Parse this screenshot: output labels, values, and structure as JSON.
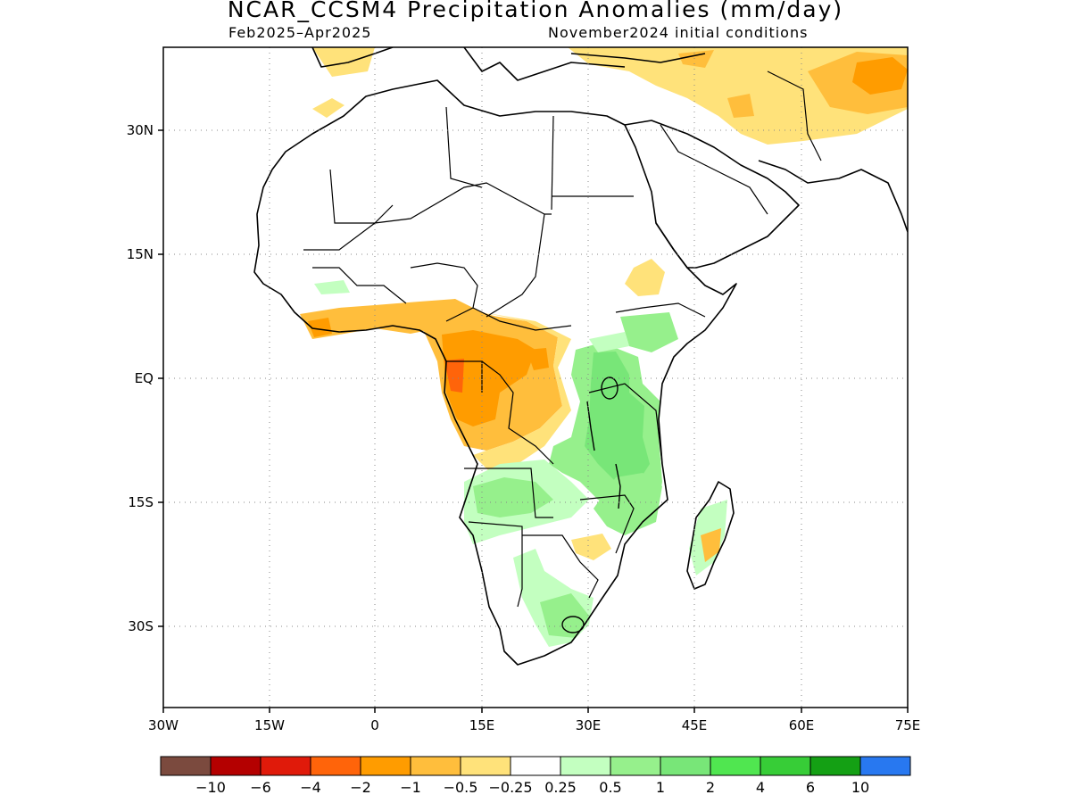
{
  "title": "NCAR_CCSM4 Precipitation Anomalies (mm/day)",
  "subtitle_left": "Feb2025–Apr2025",
  "subtitle_right": "November2024 initial conditions",
  "map": {
    "lon_range": [
      -30,
      75
    ],
    "lat_range": [
      -42,
      40
    ],
    "lon_ticks": [
      "30W",
      "15W",
      "0",
      "15E",
      "30E",
      "45E",
      "60E",
      "75E"
    ],
    "lat_ticks": [
      "30N",
      "15N",
      "EQ",
      "15S",
      "30S"
    ],
    "grid": "dotted",
    "regions": [
      {
        "name": "Gulf of Guinea coast",
        "category": "-1 to -0.5"
      },
      {
        "name": "Congo Basin / Gabon",
        "category": "-2 to -1"
      },
      {
        "name": "Central Africa",
        "category": "-1 to -0.5"
      },
      {
        "name": "East Africa / Lake Victoria",
        "category": "0.5 to 2"
      },
      {
        "name": "Southern Tanzania / Mozambique",
        "category": "0.5 to 2"
      },
      {
        "name": "Angola / Zambia",
        "category": "0.25 to 1"
      },
      {
        "name": "South Africa (east)",
        "category": "0.25 to 1"
      },
      {
        "name": "Southeast Madagascar",
        "category": "-1 to -0.5"
      },
      {
        "name": "Mediterranean / Middle East / Iran",
        "category": "-1 to -0.25"
      }
    ]
  },
  "colorbar": {
    "colors": [
      "#7b4a3e",
      "#b40000",
      "#e01a0a",
      "#ff640a",
      "#ff9c00",
      "#ffbe3c",
      "#ffe27a",
      "#ffffff",
      "#c3ffc0",
      "#96f08c",
      "#78e678",
      "#50e650",
      "#37cd37",
      "#14a014",
      "#2878f0"
    ],
    "labels": [
      "−10",
      "−6",
      "−4",
      "−2",
      "−1",
      "−0.5",
      "−0.25",
      "0.25",
      "0.5",
      "1",
      "2",
      "4",
      "6",
      "10"
    ]
  }
}
